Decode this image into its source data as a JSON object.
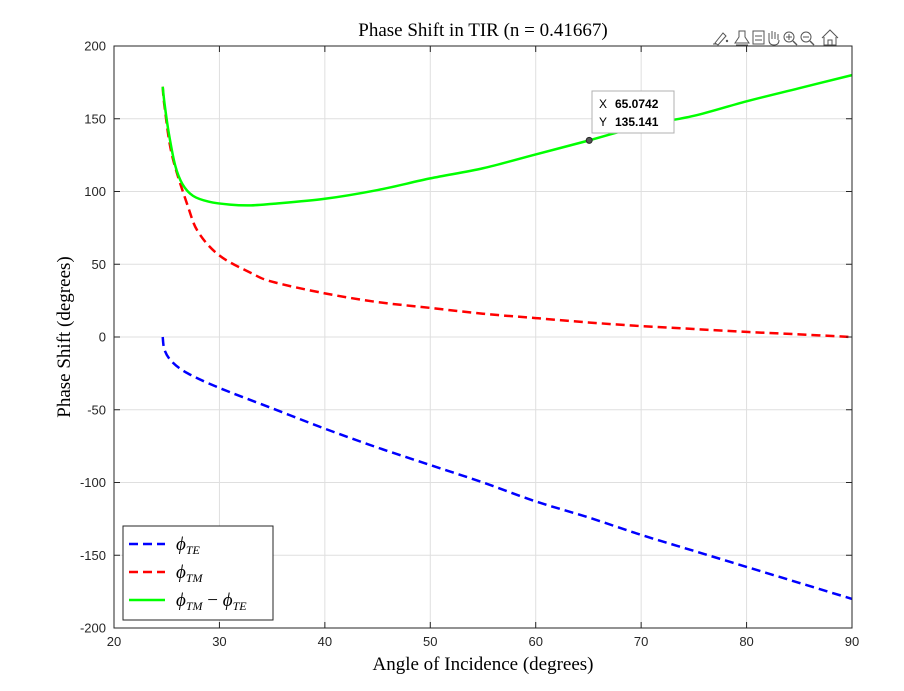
{
  "toolbar": {
    "icons": [
      "brush-icon",
      "paint-bucket-icon",
      "data-tips-icon",
      "pan-hand-icon",
      "zoom-in-icon",
      "zoom-out-icon",
      "home-icon"
    ]
  },
  "datatip": {
    "x_label": "X",
    "x_value": "65.0742",
    "y_label": "Y",
    "y_value": "135.141"
  },
  "chart_data": {
    "type": "line",
    "title": "Phase Shift in TIR (n = 0.41667)",
    "xlabel": "Angle of Incidence (degrees)",
    "ylabel": "Phase Shift (degrees)",
    "xlim": [
      20,
      90
    ],
    "ylim": [
      -200,
      200
    ],
    "xticks": [
      20,
      30,
      40,
      50,
      60,
      70,
      80,
      90
    ],
    "yticks": [
      -200,
      -150,
      -100,
      -50,
      0,
      50,
      100,
      150,
      200
    ],
    "grid": true,
    "legend_position": "bottom-left",
    "critical_angle": 24.62,
    "series": [
      {
        "name": "φTE",
        "color": "#0000ff",
        "dash": "dashed",
        "points": [
          [
            24.62,
            0
          ],
          [
            24.8,
            -9
          ],
          [
            25.5,
            -17
          ],
          [
            27,
            -25
          ],
          [
            30,
            -35
          ],
          [
            35,
            -49
          ],
          [
            40,
            -63
          ],
          [
            45,
            -76
          ],
          [
            50,
            -88
          ],
          [
            55,
            -100
          ],
          [
            60,
            -113
          ],
          [
            65,
            -124
          ],
          [
            70,
            -136
          ],
          [
            75,
            -147
          ],
          [
            80,
            -158
          ],
          [
            85,
            -169
          ],
          [
            90,
            -180
          ]
        ]
      },
      {
        "name": "φTM",
        "color": "#ff0000",
        "dash": "dashed",
        "points": [
          [
            24.62,
            172
          ],
          [
            24.8,
            158
          ],
          [
            25.5,
            125
          ],
          [
            27,
            90
          ],
          [
            28,
            72
          ],
          [
            30,
            56
          ],
          [
            33,
            44
          ],
          [
            35,
            38
          ],
          [
            40,
            30
          ],
          [
            45,
            24
          ],
          [
            50,
            20
          ],
          [
            55,
            16
          ],
          [
            60,
            13
          ],
          [
            65,
            10
          ],
          [
            70,
            7.5
          ],
          [
            75,
            5.5
          ],
          [
            80,
            3.5
          ],
          [
            85,
            1.8
          ],
          [
            90,
            0
          ]
        ]
      },
      {
        "name": "φTM − φTE",
        "color": "#00ff00",
        "dash": "solid",
        "points": [
          [
            24.62,
            172
          ],
          [
            24.8,
            160
          ],
          [
            25.2,
            140
          ],
          [
            25.8,
            118
          ],
          [
            26.5,
            105
          ],
          [
            27.5,
            97
          ],
          [
            29,
            93
          ],
          [
            31,
            91
          ],
          [
            33,
            90.5
          ],
          [
            35,
            91.5
          ],
          [
            40,
            95
          ],
          [
            45,
            101
          ],
          [
            50,
            109
          ],
          [
            55,
            116
          ],
          [
            60,
            125.5
          ],
          [
            65.0742,
            135.141
          ],
          [
            70,
            145
          ],
          [
            75,
            152
          ],
          [
            80,
            162
          ],
          [
            85,
            171
          ],
          [
            90,
            180
          ]
        ]
      }
    ],
    "datatip_point": [
      65.0742,
      135.141
    ]
  }
}
